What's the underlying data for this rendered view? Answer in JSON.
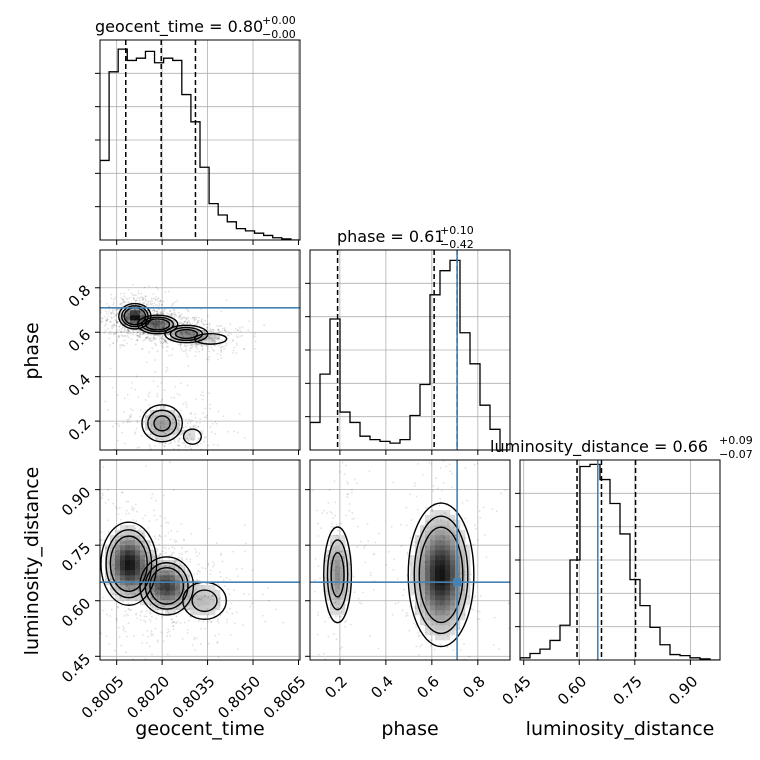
{
  "chart_data": {
    "type": "corner",
    "parameters": [
      "geocent_time",
      "phase",
      "luminosity_distance"
    ],
    "truths": {
      "phase": 0.71,
      "luminosity_distance": 0.65
    },
    "truth_color": "#4682b4",
    "grid": true,
    "panels": [
      {
        "id": "hist-geocent_time",
        "type": "histogram",
        "param": "geocent_time",
        "title": {
          "prefix": "geocent_time = 0.80",
          "sup": "+0.00",
          "sub": "−0.00"
        },
        "xlim": [
          0.79995,
          0.80655
        ],
        "bins_lo": 0.79995,
        "bin_width": 0.0003,
        "counts": [
          0.35,
          0.74,
          0.84,
          0.79,
          0.8,
          0.83,
          0.78,
          0.8,
          0.79,
          0.64,
          0.52,
          0.32,
          0.16,
          0.11,
          0.08,
          0.05,
          0.04,
          0.03,
          0.02,
          0.01,
          0.005,
          0.0
        ],
        "ymax": 0.88,
        "quantiles": [
          0.8008,
          0.80197,
          0.8031
        ],
        "xticks": [
          0.8005,
          0.802,
          0.8035,
          0.805,
          0.8065
        ],
        "xtick_labels": [
          "0.8005",
          "0.8020",
          "0.8035",
          "0.8050",
          "0.8065"
        ]
      },
      {
        "id": "hist-phase",
        "type": "histogram",
        "param": "phase",
        "title": {
          "prefix": "phase = 0.61",
          "sup": "+0.10",
          "sub": "−0.42"
        },
        "xlim": [
          0.07,
          0.94
        ],
        "bins_lo": 0.07,
        "bin_width": 0.0435,
        "counts": [
          0.08,
          0.22,
          0.38,
          0.11,
          0.08,
          0.04,
          0.03,
          0.025,
          0.02,
          0.03,
          0.1,
          0.19,
          0.45,
          0.52,
          0.55,
          0.34,
          0.25,
          0.13,
          0.06,
          0.0
        ],
        "ymax": 0.58,
        "quantiles": [
          0.19,
          0.61,
          0.71
        ],
        "xticks": [
          0.2,
          0.4,
          0.6,
          0.8
        ],
        "xtick_labels": [
          "0.2",
          "0.4",
          "0.6",
          "0.8"
        ]
      },
      {
        "id": "hist-luminosity_distance",
        "type": "histogram",
        "param": "luminosity_distance",
        "title": {
          "prefix": "luminosity_distance = 0.66",
          "sup": "+0.09",
          "sub": "−0.07"
        },
        "xlim": [
          0.44,
          0.98
        ],
        "bins_lo": 0.44,
        "bin_width": 0.027,
        "counts": [
          0.01,
          0.03,
          0.05,
          0.09,
          0.16,
          0.46,
          0.89,
          0.9,
          0.83,
          0.72,
          0.58,
          0.37,
          0.25,
          0.15,
          0.07,
          0.025,
          0.02,
          0.01,
          0.005,
          0.0
        ],
        "ymax": 0.92,
        "quantiles": [
          0.594,
          0.66,
          0.752
        ],
        "xticks": [
          0.45,
          0.6,
          0.75,
          0.9
        ],
        "xtick_labels": [
          "0.45",
          "0.60",
          "0.75",
          "0.90"
        ]
      },
      {
        "id": "contour-phase-vs-geocent_time",
        "type": "contour",
        "x_param": "geocent_time",
        "y_param": "phase",
        "xlim": [
          0.79995,
          0.80655
        ],
        "ylim": [
          0.07,
          0.97
        ],
        "yticks": [
          0.2,
          0.4,
          0.6,
          0.8
        ],
        "ytick_labels": [
          "0.2",
          "0.4",
          "0.6",
          "0.8"
        ],
        "blobs": [
          {
            "x": 0.8011,
            "y": 0.672,
            "sx": 0.00026,
            "sy": 0.028,
            "w": 1.0
          },
          {
            "x": 0.80185,
            "y": 0.635,
            "sx": 0.00035,
            "sy": 0.022,
            "w": 0.75
          },
          {
            "x": 0.8028,
            "y": 0.592,
            "sx": 0.0004,
            "sy": 0.022,
            "w": 0.6
          },
          {
            "x": 0.8036,
            "y": 0.57,
            "sx": 0.00045,
            "sy": 0.02,
            "w": 0.25
          },
          {
            "x": 0.802,
            "y": 0.19,
            "sx": 0.0004,
            "sy": 0.05,
            "w": 0.5
          },
          {
            "x": 0.803,
            "y": 0.13,
            "sx": 0.0003,
            "sy": 0.035,
            "w": 0.2
          }
        ]
      },
      {
        "id": "contour-luminosity_distance-vs-geocent_time",
        "type": "contour",
        "x_param": "geocent_time",
        "y_param": "luminosity_distance",
        "xlim": [
          0.79995,
          0.80655
        ],
        "ylim": [
          0.44,
          0.98
        ],
        "yticks": [
          0.45,
          0.6,
          0.75,
          0.9
        ],
        "ytick_labels": [
          "0.45",
          "0.60",
          "0.75",
          "0.90"
        ],
        "blobs": [
          {
            "x": 0.8009,
            "y": 0.7,
            "sx": 0.00045,
            "sy": 0.055,
            "w": 1.0
          },
          {
            "x": 0.80215,
            "y": 0.64,
            "sx": 0.00045,
            "sy": 0.04,
            "w": 0.85
          },
          {
            "x": 0.8034,
            "y": 0.6,
            "sx": 0.0005,
            "sy": 0.035,
            "w": 0.35
          }
        ]
      },
      {
        "id": "contour-luminosity_distance-vs-phase",
        "type": "contour",
        "x_param": "phase",
        "y_param": "luminosity_distance",
        "xlim": [
          0.07,
          0.94
        ],
        "ylim": [
          0.44,
          0.98
        ],
        "blobs": [
          {
            "x": 0.19,
            "y": 0.67,
            "sx": 0.035,
            "sy": 0.075,
            "w": 0.55
          },
          {
            "x": 0.64,
            "y": 0.67,
            "sx": 0.07,
            "sy": 0.095,
            "w": 1.0
          }
        ]
      }
    ],
    "x_axis_labels": [
      "geocent_time",
      "phase",
      "luminosity_distance"
    ],
    "y_axis_labels": [
      "phase",
      "luminosity_distance"
    ]
  }
}
